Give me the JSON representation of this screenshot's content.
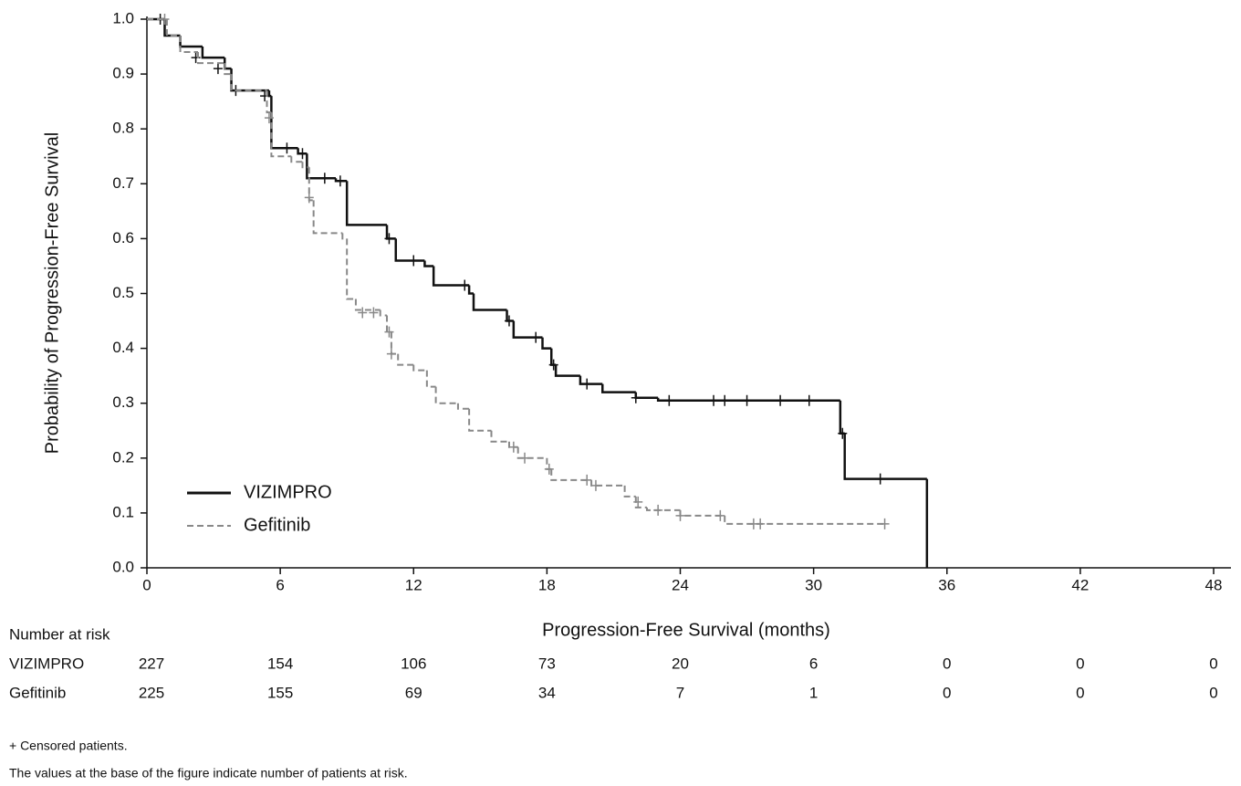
{
  "chart_data": {
    "type": "step",
    "y_label": "Probability of Progression-Free Survival",
    "x_label": "Progression-Free Survival (months)",
    "xlim": [
      0,
      48
    ],
    "xticks": [
      0,
      6,
      12,
      18,
      24,
      30,
      36,
      42,
      48
    ],
    "ylim": [
      0,
      1
    ],
    "yticks": [
      {
        "value": 0,
        "label": "0.0"
      },
      {
        "value": 0.1,
        "label": "0.1"
      },
      {
        "value": 0.2,
        "label": "0.2"
      },
      {
        "value": 0.3,
        "label": "0.3"
      },
      {
        "value": 0.4,
        "label": "0.4"
      },
      {
        "value": 0.5,
        "label": "0.5"
      },
      {
        "value": 0.6,
        "label": "0.6"
      },
      {
        "value": 0.7,
        "label": "0.7"
      },
      {
        "value": 0.8,
        "label": "0.8"
      },
      {
        "value": 0.9,
        "label": "0.9"
      },
      {
        "value": 1,
        "label": "1.0"
      }
    ],
    "legend": "lower left",
    "series": [
      {
        "name": "VIZIMPRO",
        "color": "#111111",
        "dashed": false,
        "x": [
          0,
          0.8,
          1.5,
          2.5,
          3.5,
          3.8,
          5.5,
          5.6,
          6.8,
          7.2,
          8.5,
          9.0,
          10.8,
          11.2,
          12.5,
          12.9,
          14.5,
          14.7,
          16.2,
          16.5,
          17.8,
          18.2,
          18.4,
          19.5,
          20.5,
          22.0,
          23.0,
          31.2,
          31.4,
          35.1
        ],
        "values": [
          1.0,
          0.97,
          0.95,
          0.93,
          0.91,
          0.87,
          0.86,
          0.765,
          0.755,
          0.71,
          0.705,
          0.625,
          0.6,
          0.56,
          0.55,
          0.515,
          0.5,
          0.47,
          0.45,
          0.42,
          0.4,
          0.37,
          0.35,
          0.335,
          0.32,
          0.31,
          0.305,
          0.245,
          0.162,
          0.0
        ],
        "censored_x": [
          0.6,
          2.2,
          3.2,
          4.0,
          5.3,
          6.3,
          7.0,
          8.0,
          8.7,
          10.9,
          12.0,
          14.3,
          16.3,
          17.5,
          18.3,
          19.8,
          22.0,
          23.5,
          25.5,
          26.0,
          27.0,
          28.5,
          29.8,
          31.3,
          33.0
        ],
        "censored_values": [
          1.0,
          0.93,
          0.91,
          0.87,
          0.86,
          0.765,
          0.755,
          0.71,
          0.705,
          0.6,
          0.56,
          0.515,
          0.45,
          0.42,
          0.37,
          0.335,
          0.31,
          0.305,
          0.305,
          0.305,
          0.305,
          0.305,
          0.305,
          0.245,
          0.162
        ]
      },
      {
        "name": "Gefitinib",
        "color": "#888888",
        "dashed": true,
        "x": [
          0,
          0.9,
          1.5,
          2.3,
          3.5,
          3.8,
          5.4,
          5.6,
          6.5,
          7.0,
          7.3,
          7.5,
          8.8,
          9.0,
          9.4,
          10.5,
          10.8,
          11.0,
          11.3,
          12.0,
          12.6,
          13.0,
          14.0,
          14.5,
          15.5,
          16.3,
          16.7,
          18.0,
          18.2,
          20.0,
          21.5,
          22.0,
          22.5,
          24.0,
          26.0,
          33.2
        ],
        "values": [
          1.0,
          0.97,
          0.94,
          0.92,
          0.9,
          0.87,
          0.83,
          0.75,
          0.74,
          0.73,
          0.67,
          0.61,
          0.6,
          0.49,
          0.47,
          0.46,
          0.43,
          0.39,
          0.37,
          0.36,
          0.33,
          0.3,
          0.29,
          0.25,
          0.23,
          0.22,
          0.2,
          0.18,
          0.16,
          0.15,
          0.13,
          0.11,
          0.105,
          0.095,
          0.08,
          0.08
        ],
        "censored_x": [
          0.8,
          5.5,
          7.3,
          9.7,
          10.2,
          10.9,
          11.0,
          16.5,
          17.0,
          18.1,
          19.8,
          20.2,
          22.1,
          23.0,
          24.0,
          25.8,
          27.3,
          27.6,
          33.2
        ],
        "censored_values": [
          1.0,
          0.82,
          0.675,
          0.465,
          0.465,
          0.43,
          0.39,
          0.22,
          0.2,
          0.18,
          0.16,
          0.15,
          0.12,
          0.105,
          0.095,
          0.095,
          0.08,
          0.08,
          0.08
        ]
      }
    ],
    "risk_table": {
      "title": "Number at risk",
      "rows": [
        {
          "name": "VIZIMPRO",
          "values": [
            227,
            154,
            106,
            73,
            20,
            6,
            0,
            0,
            0
          ]
        },
        {
          "name": "Gefitinib",
          "values": [
            225,
            155,
            69,
            34,
            7,
            1,
            0,
            0,
            0
          ]
        }
      ]
    },
    "footnotes": [
      "+ Censored patients.",
      "The values at the base of the figure indicate number of patients at risk."
    ]
  }
}
